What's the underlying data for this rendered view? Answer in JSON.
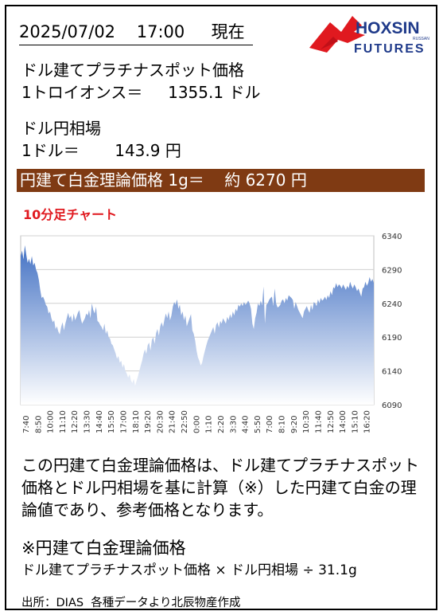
{
  "header": {
    "datetime": "2025/07/02    17:00     現在"
  },
  "logo": {
    "brand": "HOXSIN",
    "sub": "FUTURES",
    "tag": "RUSSAN"
  },
  "platinum": {
    "label": "ドル建てプラチナスポット価格",
    "value_line": "1トロイオンス＝     1355.1 ドル"
  },
  "fx": {
    "label": "ドル円相場",
    "value_line": "1ドル＝       143.9 円"
  },
  "banner": {
    "text": "円建て白金理論価格 1g＝    約 6270 円"
  },
  "chart_title": "10分足チャート",
  "description": "この円建て白金理論価格は、ドル建てプラチナスポット価格とドル円相場を基に計算（※）した円建て白金の理論値であり、参考価格となります。",
  "formula_title": "※円建て白金理論価格",
  "formula": "ドル建てプラチナスポット価格 × ドル円相場 ÷ 31.1g",
  "source": "出所：DIAS  各種データより北辰物産作成",
  "colors": {
    "banner": "#7f3a13",
    "chart_title": "#e0191f",
    "area_top": "#4472c4",
    "area_bottom": "#ffffff",
    "logo_red": "#e0191f",
    "logo_blue": "#1f3a8a"
  },
  "chart_data": {
    "type": "area",
    "ylim": [
      6090,
      6340
    ],
    "yticks": [
      6340,
      6290,
      6240,
      6190,
      6140,
      6090
    ],
    "xtick_labels": [
      "7:40",
      "8:50",
      "10:00",
      "11:10",
      "12:20",
      "13:30",
      "14:40",
      "15:50",
      "17:00",
      "18:10",
      "19:20",
      "20:30",
      "21:40",
      "22:50",
      "0:00",
      "1:10",
      "2:20",
      "3:30",
      "4:40",
      "5:50",
      "7:00",
      "8:10",
      "9:20",
      "10:30",
      "11:40",
      "12:50",
      "14:00",
      "15:10",
      "16:20"
    ],
    "values": [
      6310,
      6318,
      6305,
      6326,
      6312,
      6300,
      6306,
      6298,
      6310,
      6296,
      6300,
      6290,
      6285,
      6275,
      6260,
      6248,
      6250,
      6245,
      6238,
      6235,
      6225,
      6228,
      6218,
      6212,
      6215,
      6202,
      6206,
      6198,
      6194,
      6205,
      6212,
      6200,
      6210,
      6218,
      6226,
      6218,
      6222,
      6212,
      6225,
      6215,
      6220,
      6226,
      6230,
      6218,
      6210,
      6214,
      6218,
      6225,
      6222,
      6230,
      6218,
      6240,
      6230,
      6225,
      6235,
      6214,
      6212,
      6208,
      6205,
      6200,
      6210,
      6195,
      6200,
      6190,
      6188,
      6180,
      6178,
      6172,
      6166,
      6158,
      6162,
      6152,
      6155,
      6145,
      6150,
      6140,
      6136,
      6130,
      6135,
      6126,
      6122,
      6128,
      6118,
      6125,
      6132,
      6140,
      6148,
      6155,
      6165,
      6172,
      6165,
      6178,
      6182,
      6170,
      6186,
      6190,
      6180,
      6196,
      6202,
      6192,
      6206,
      6212,
      6205,
      6216,
      6225,
      6218,
      6228,
      6215,
      6222,
      6235,
      6242,
      6238,
      6246,
      6232,
      6238,
      6222,
      6228,
      6215,
      6222,
      6206,
      6212,
      6218,
      6224,
      6200,
      6195,
      6185,
      6170,
      6160,
      6155,
      6148,
      6152,
      6162,
      6170,
      6178,
      6185,
      6190,
      6195,
      6200,
      6205,
      6195,
      6208,
      6212,
      6204,
      6214,
      6210,
      6218,
      6214,
      6210,
      6220,
      6215,
      6224,
      6218,
      6228,
      6222,
      6232,
      6228,
      6238,
      6235,
      6240,
      6236,
      6242,
      6238,
      6240,
      6244,
      6240,
      6232,
      6210,
      6202,
      6218,
      6226,
      6240,
      6236,
      6244,
      6237,
      6265,
      6210,
      6238,
      6240,
      6245,
      6248,
      6250,
      6236,
      6262,
      6240,
      6234,
      6235,
      6238,
      6244,
      6246,
      6240,
      6248,
      6244,
      6252,
      6250,
      6248,
      6245,
      6232,
      6242,
      6236,
      6230,
      6226,
      6222,
      6218,
      6228,
      6232,
      6236,
      6230,
      6226,
      6238,
      6230,
      6242,
      6240,
      6236,
      6246,
      6240,
      6248,
      6244,
      6246,
      6250,
      6245,
      6252,
      6248,
      6258,
      6252,
      6264,
      6262,
      6270,
      6264,
      6268,
      6266,
      6262,
      6268,
      6264,
      6260,
      6266,
      6262,
      6272,
      6266,
      6262,
      6268,
      6264,
      6258,
      6262,
      6256,
      6250,
      6262,
      6264,
      6272,
      6266,
      6270,
      6279,
      6272,
      6276,
      6270
    ]
  }
}
